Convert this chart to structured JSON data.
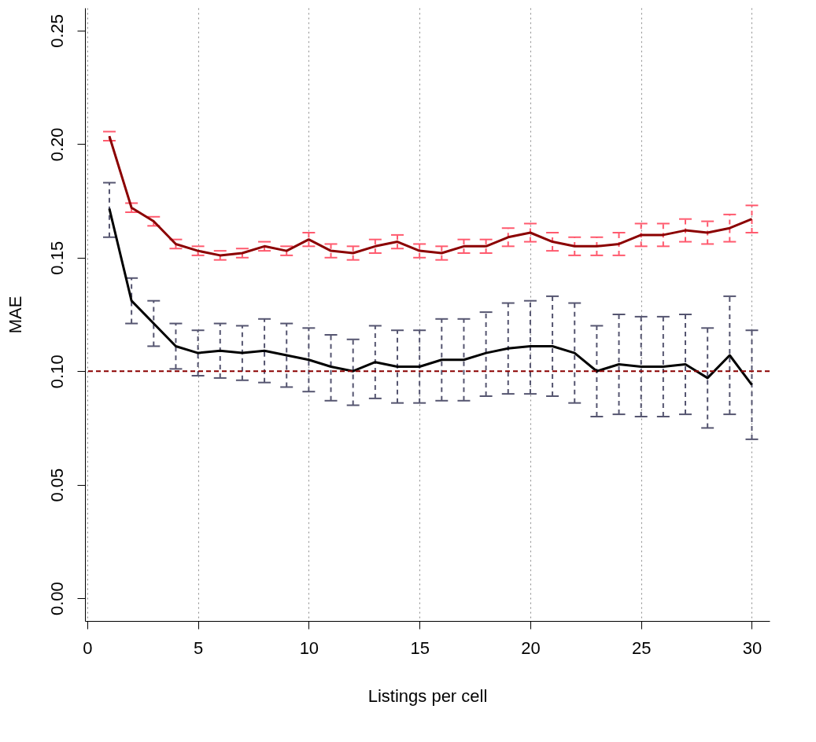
{
  "chart_data": {
    "type": "line",
    "xlabel": "Listings per cell",
    "ylabel": "MAE",
    "x": [
      1,
      2,
      3,
      4,
      5,
      6,
      7,
      8,
      9,
      10,
      11,
      12,
      13,
      14,
      15,
      16,
      17,
      18,
      19,
      20,
      21,
      22,
      23,
      24,
      25,
      26,
      27,
      28,
      29,
      30
    ],
    "series": [
      {
        "color": "#8b0000",
        "values": [
          0.2035,
          0.172,
          0.166,
          0.156,
          0.153,
          0.151,
          0.152,
          0.155,
          0.153,
          0.158,
          0.153,
          0.152,
          0.155,
          0.157,
          0.153,
          0.152,
          0.155,
          0.155,
          0.159,
          0.161,
          0.157,
          0.155,
          0.155,
          0.156,
          0.16,
          0.16,
          0.162,
          0.161,
          0.163,
          0.167
        ],
        "errors": [
          0.002,
          0.002,
          0.002,
          0.002,
          0.002,
          0.002,
          0.002,
          0.002,
          0.002,
          0.003,
          0.003,
          0.003,
          0.003,
          0.003,
          0.003,
          0.003,
          0.003,
          0.003,
          0.004,
          0.004,
          0.004,
          0.004,
          0.004,
          0.005,
          0.005,
          0.005,
          0.005,
          0.005,
          0.006,
          0.006
        ]
      },
      {
        "color": "#000000",
        "values": [
          0.1716,
          0.131,
          0.121,
          0.111,
          0.108,
          0.109,
          0.108,
          0.109,
          0.107,
          0.105,
          0.102,
          0.1,
          0.104,
          0.102,
          0.102,
          0.105,
          0.105,
          0.108,
          0.11,
          0.111,
          0.111,
          0.108,
          0.1,
          0.103,
          0.102,
          0.102,
          0.103,
          0.097,
          0.107,
          0.094
        ],
        "errors": [
          [
            0.159,
            0.183
          ],
          [
            0.121,
            0.141
          ],
          [
            0.111,
            0.131
          ],
          [
            0.101,
            0.121
          ],
          [
            0.098,
            0.118
          ],
          [
            0.097,
            0.121
          ],
          [
            0.096,
            0.12
          ],
          [
            0.095,
            0.123
          ],
          [
            0.093,
            0.121
          ],
          [
            0.091,
            0.119
          ],
          [
            0.087,
            0.116
          ],
          [
            0.085,
            0.114
          ],
          [
            0.088,
            0.12
          ],
          [
            0.086,
            0.118
          ],
          [
            0.086,
            0.118
          ],
          [
            0.087,
            0.123
          ],
          [
            0.087,
            0.123
          ],
          [
            0.089,
            0.126
          ],
          [
            0.09,
            0.13
          ],
          [
            0.09,
            0.131
          ],
          [
            0.089,
            0.133
          ],
          [
            0.086,
            0.13
          ],
          [
            0.08,
            0.12
          ],
          [
            0.081,
            0.125
          ],
          [
            0.08,
            0.124
          ],
          [
            0.08,
            0.124
          ],
          [
            0.081,
            0.125
          ],
          [
            0.075,
            0.119
          ],
          [
            0.081,
            0.133
          ],
          [
            0.07,
            0.118
          ]
        ]
      }
    ],
    "ref_lines": [
      {
        "axis": "y",
        "value": 0.1,
        "color": "#8b0000",
        "line_style": "dashed"
      }
    ],
    "xlim": [
      -0.1,
      30.8
    ],
    "ylim": [
      -0.01,
      0.26
    ],
    "xticks": [
      0,
      5,
      10,
      15,
      20,
      25,
      30
    ],
    "yticks": [
      {
        "value": 0,
        "label": "0.00"
      },
      {
        "value": 0.05,
        "label": "0.05"
      },
      {
        "value": 0.1,
        "label": "0.10"
      },
      {
        "value": 0.15,
        "label": "0.15"
      },
      {
        "value": 0.2,
        "label": "0.20"
      },
      {
        "value": 0.25,
        "label": "0.25"
      }
    ],
    "grid": "x",
    "line_style": "solid"
  }
}
